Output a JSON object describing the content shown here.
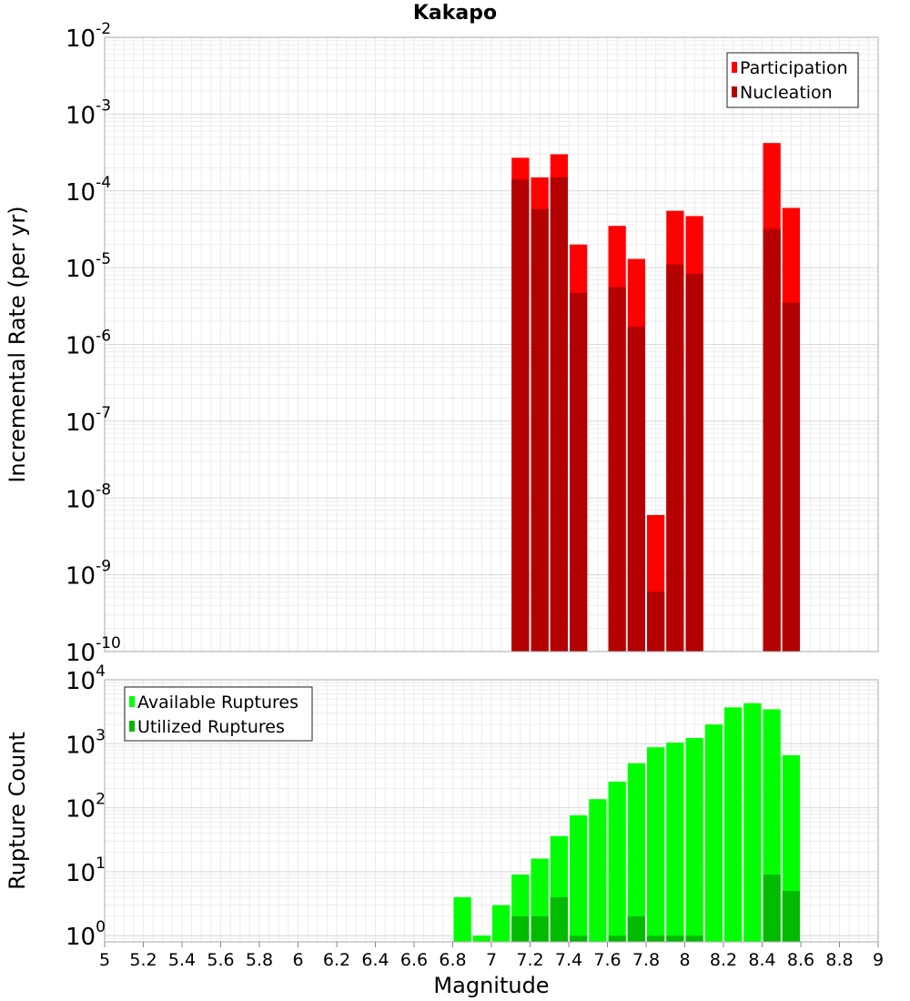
{
  "chart_data": [
    {
      "type": "bar",
      "title": "Kakapo",
      "ylabel": "Incremental Rate (per yr)",
      "xlabel": "",
      "yscale": "log",
      "ylim": [
        1e-10,
        0.01
      ],
      "xlim": [
        5,
        9
      ],
      "legend_position": "top-right",
      "bar_width": 0.1,
      "ytick_exponents": [
        "-2",
        "-3",
        "-4",
        "-5",
        "-6",
        "-7",
        "-8",
        "-9",
        "-10"
      ],
      "x": [
        7.15,
        7.25,
        7.35,
        7.45,
        7.65,
        7.75,
        7.85,
        7.95,
        8.05,
        8.45,
        8.55
      ],
      "series": [
        {
          "name": "Participation",
          "color": "#ff0000",
          "values": [
            0.00027,
            0.00015,
            0.0003,
            2e-05,
            3.5e-05,
            1.3e-05,
            6e-09,
            5.5e-05,
            4.7e-05,
            0.00042,
            6e-05
          ]
        },
        {
          "name": "Nucleation",
          "color": "#b30000",
          "values": [
            0.00014,
            5.8e-05,
            0.00015,
            4.7e-06,
            5.6e-06,
            1.7e-06,
            6e-10,
            1.1e-05,
            8.3e-06,
            3.2e-05,
            3.5e-06
          ]
        }
      ]
    },
    {
      "type": "bar",
      "ylabel": "Rupture Count",
      "xlabel": "Magnitude",
      "yscale": "log",
      "ylim": [
        0.8,
        10000
      ],
      "xlim": [
        5,
        9
      ],
      "legend_position": "top-left",
      "bar_width": 0.1,
      "ytick_exponents": [
        "4",
        "3",
        "2",
        "1",
        "0"
      ],
      "xticks": [
        "5",
        "5.2",
        "5.4",
        "5.6",
        "5.8",
        "6",
        "6.2",
        "6.4",
        "6.6",
        "6.8",
        "7",
        "7.2",
        "7.4",
        "7.6",
        "7.8",
        "8",
        "8.2",
        "8.4",
        "8.6",
        "8.8",
        "9"
      ],
      "x": [
        6.85,
        6.95,
        7.05,
        7.15,
        7.25,
        7.35,
        7.45,
        7.55,
        7.65,
        7.75,
        7.85,
        7.95,
        8.05,
        8.15,
        8.25,
        8.35,
        8.45,
        8.55
      ],
      "series": [
        {
          "name": "Available Ruptures",
          "color": "#00ff00",
          "values": [
            4,
            1,
            3,
            9,
            16,
            36,
            76,
            136,
            256,
            495,
            880,
            1040,
            1230,
            2000,
            3700,
            4300,
            3450,
            660
          ]
        },
        {
          "name": "Utilized Ruptures",
          "color": "#00bb00",
          "values": [
            0,
            0,
            0,
            2,
            2,
            4,
            1,
            0,
            1,
            2,
            1,
            1,
            1,
            0,
            0,
            0,
            9,
            5
          ]
        }
      ]
    }
  ]
}
